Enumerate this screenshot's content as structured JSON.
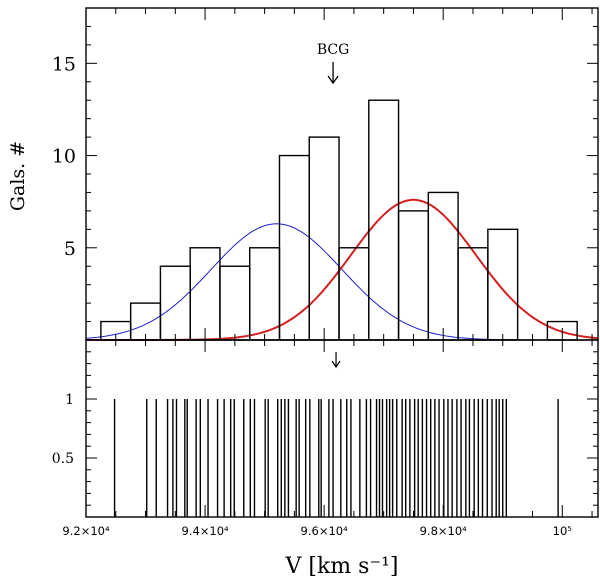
{
  "chart_data": [
    {
      "type": "bar",
      "panel": "top",
      "title": "",
      "xlabel": "",
      "ylabel": "Gals. #",
      "xlim": [
        92000,
        100600
      ],
      "ylim": [
        0,
        18
      ],
      "y_ticks_labeled": [
        5,
        10,
        15
      ],
      "histogram": {
        "bin_edges": [
          92250,
          92750,
          93250,
          93750,
          94250,
          94750,
          95250,
          95750,
          96250,
          96750,
          97250,
          97750,
          98250,
          98750,
          99250,
          99750,
          100250
        ],
        "counts": [
          1,
          2,
          4,
          5,
          4,
          5,
          10,
          11,
          5,
          13,
          7,
          8,
          5,
          6,
          0,
          1
        ]
      },
      "series": [
        {
          "name": "blue gaussian",
          "kind": "gaussian",
          "color": "#1f1fd0",
          "mean": 95200,
          "sigma": 1100,
          "amplitude": 6.3
        },
        {
          "name": "red gaussian",
          "kind": "gaussian",
          "color": "#d42020",
          "mean": 97500,
          "sigma": 1050,
          "amplitude": 7.6
        }
      ],
      "annotations": [
        {
          "text": "BCG",
          "x": 96150
        }
      ]
    },
    {
      "type": "stem",
      "panel": "bottom",
      "xlabel": "V [km s⁻¹]",
      "ylabel": "",
      "xlim": [
        92000,
        100600
      ],
      "ylim": [
        0,
        1.5
      ],
      "x_ticks": [
        92000,
        94000,
        96000,
        98000,
        100000
      ],
      "x_tick_labels": [
        "9.2×10⁴",
        "9.4×10⁴",
        "9.6×10⁴",
        "9.8×10⁴",
        "10⁵"
      ],
      "y_ticks_labeled": [
        0.5,
        1
      ],
      "y_tick_labels": [
        "0.5",
        "1"
      ],
      "arrow_x": 96200,
      "velocities": [
        92480,
        93020,
        93180,
        93370,
        93460,
        93520,
        93660,
        93700,
        93850,
        93920,
        94050,
        94210,
        94320,
        94430,
        94490,
        94650,
        94760,
        94830,
        95010,
        95060,
        95220,
        95280,
        95340,
        95400,
        95530,
        95580,
        95690,
        95760,
        95910,
        95950,
        96080,
        96150,
        96280,
        96380,
        96450,
        96600,
        96710,
        96780,
        96880,
        96930,
        96980,
        97050,
        97100,
        97150,
        97220,
        97310,
        97370,
        97440,
        97520,
        97580,
        97650,
        97720,
        97790,
        97860,
        97930,
        98010,
        98080,
        98150,
        98230,
        98300,
        98380,
        98440,
        98520,
        98590,
        98660,
        98740,
        98820,
        98890,
        98940,
        99000,
        99060,
        99930
      ]
    }
  ]
}
